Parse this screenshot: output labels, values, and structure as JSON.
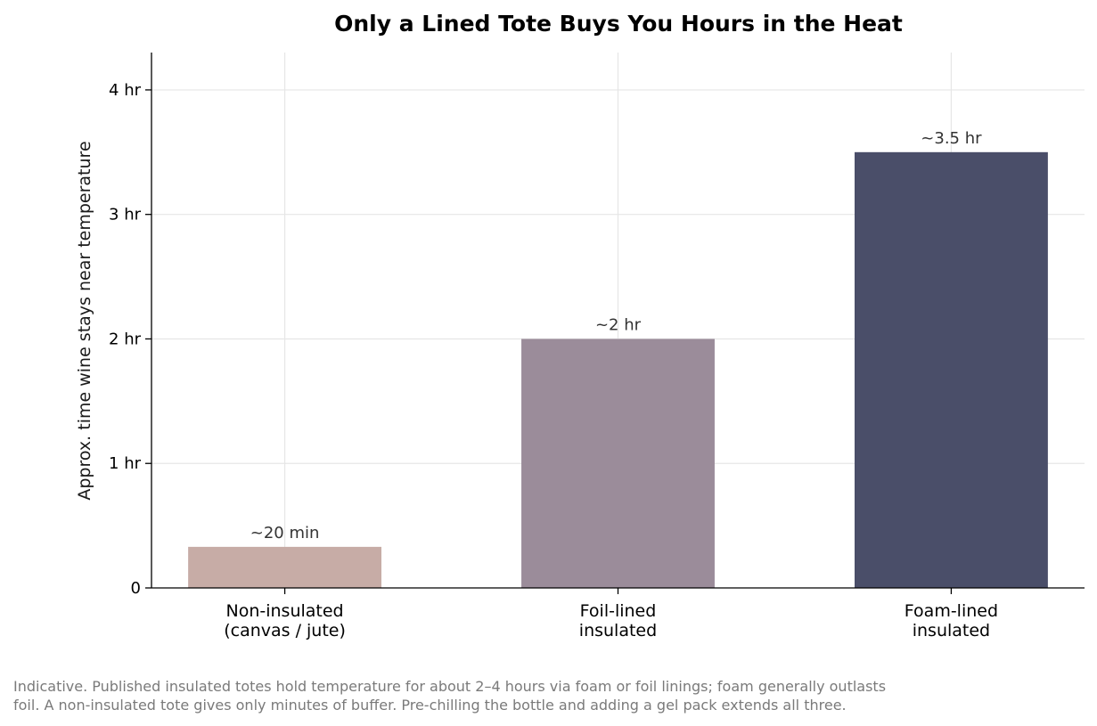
{
  "chart_data": {
    "type": "bar",
    "title": "Only a Lined Tote Buys You Hours in the Heat",
    "ylabel": "Approx. time wine stays near temperature",
    "xlabel": "",
    "categories": [
      [
        "Non-insulated",
        "(canvas / jute)"
      ],
      [
        "Foil-lined",
        "insulated"
      ],
      [
        "Foam-lined",
        "insulated"
      ]
    ],
    "values": [
      0.33,
      2.0,
      3.5
    ],
    "data_labels": [
      "~20 min",
      "~2 hr",
      "~3.5 hr"
    ],
    "colors": [
      "#c7aca6",
      "#9b8c9a",
      "#4a4e69"
    ],
    "ylim": [
      0,
      4.3
    ],
    "yticks": [
      0,
      1,
      2,
      3,
      4
    ],
    "ytick_labels": [
      "0",
      "1 hr",
      "2 hr",
      "3 hr",
      "4 hr"
    ],
    "grid": true,
    "legend": "none"
  },
  "footnote": {
    "line1": "Indicative. Published insulated totes hold temperature for about 2–4 hours via foam or foil linings; foam generally outlasts",
    "line2": "foil. A non-insulated tote gives only minutes of buffer. Pre-chilling the bottle and adding a gel pack extends all three."
  }
}
